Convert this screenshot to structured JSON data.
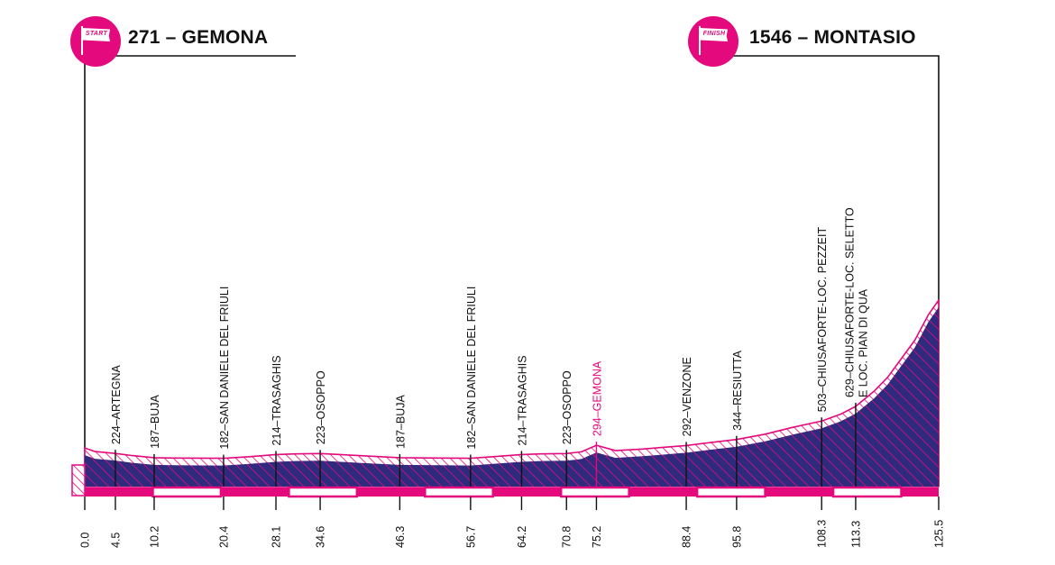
{
  "start": {
    "label": "271 – GEMONA",
    "flag_text": "START"
  },
  "finish": {
    "label": "1546 – MONTASIO",
    "flag_text": "FINISH"
  },
  "colors": {
    "accent": "#e4097c",
    "profile_fill": "#2e2a7e",
    "line": "#111111",
    "white": "#ffffff"
  },
  "chart_data": {
    "type": "area",
    "title": "",
    "xlabel": "",
    "ylabel": "",
    "xlim": [
      0,
      125.5
    ],
    "profile": [
      [
        0,
        271
      ],
      [
        1.5,
        240
      ],
      [
        4.5,
        224
      ],
      [
        7,
        205
      ],
      [
        10.2,
        187
      ],
      [
        13,
        184
      ],
      [
        17,
        183
      ],
      [
        20.4,
        182
      ],
      [
        24,
        195
      ],
      [
        28.1,
        214
      ],
      [
        31,
        220
      ],
      [
        34.6,
        223
      ],
      [
        40,
        206
      ],
      [
        46.3,
        187
      ],
      [
        52,
        184
      ],
      [
        56.7,
        182
      ],
      [
        60,
        196
      ],
      [
        64.2,
        214
      ],
      [
        67,
        220
      ],
      [
        70.8,
        223
      ],
      [
        73,
        238
      ],
      [
        75.2,
        294
      ],
      [
        78,
        248
      ],
      [
        82,
        262
      ],
      [
        85,
        276
      ],
      [
        88.4,
        292
      ],
      [
        92,
        318
      ],
      [
        95.8,
        344
      ],
      [
        100,
        390
      ],
      [
        104,
        448
      ],
      [
        108.3,
        503
      ],
      [
        111,
        560
      ],
      [
        113.3,
        629
      ],
      [
        116,
        760
      ],
      [
        118,
        880
      ],
      [
        120,
        1040
      ],
      [
        122,
        1200
      ],
      [
        124,
        1420
      ],
      [
        125.5,
        1546
      ]
    ],
    "profile_ylim": [
      0,
      1600
    ],
    "places": [
      {
        "km": 4.5,
        "alt": 224,
        "label": "224–ARTEGNA",
        "highlight": false
      },
      {
        "km": 10.2,
        "alt": 187,
        "label": "187–BUJA",
        "highlight": false
      },
      {
        "km": 20.4,
        "alt": 182,
        "label": "182–SAN DANIELE DEL FRIULI",
        "highlight": false
      },
      {
        "km": 28.1,
        "alt": 214,
        "label": "214–TRASAGHIS",
        "highlight": false
      },
      {
        "km": 34.6,
        "alt": 223,
        "label": "223–OSOPPO",
        "highlight": false
      },
      {
        "km": 46.3,
        "alt": 187,
        "label": "187–BUJA",
        "highlight": false
      },
      {
        "km": 56.7,
        "alt": 182,
        "label": "182–SAN DANIELE DEL FRIULI",
        "highlight": false
      },
      {
        "km": 64.2,
        "alt": 214,
        "label": "214–TRASAGHIS",
        "highlight": false
      },
      {
        "km": 70.8,
        "alt": 223,
        "label": "223–OSOPPO",
        "highlight": false
      },
      {
        "km": 75.2,
        "alt": 294,
        "label": "294–GEMONA",
        "highlight": true
      },
      {
        "km": 88.4,
        "alt": 292,
        "label": "292–VENZONE",
        "highlight": false
      },
      {
        "km": 95.8,
        "alt": 344,
        "label": "344–RESIUTTA",
        "highlight": false
      },
      {
        "km": 108.3,
        "alt": 503,
        "label": "503–CHIUSAFORTE-LOC. PEZZEIT",
        "highlight": false
      },
      {
        "km": 113.3,
        "alt": 629,
        "label": "629–CHIUSAFORTE-LOC. SELETTO|E LOC. PIAN DI QUA",
        "highlight": false
      }
    ],
    "km_ticks": [
      "0.0",
      "4.5",
      "10.2",
      "20.4",
      "28.1",
      "34.6",
      "46.3",
      "56.7",
      "64.2",
      "70.8",
      "75.2",
      "88.4",
      "95.8",
      "108.3",
      "113.3",
      "125.5"
    ],
    "distance_bar": [
      {
        "from": 0,
        "to": 10,
        "style": "filled"
      },
      {
        "from": 10,
        "to": 20,
        "style": "outline"
      },
      {
        "from": 20,
        "to": 30,
        "style": "filled"
      },
      {
        "from": 30,
        "to": 40,
        "style": "outline"
      },
      {
        "from": 40,
        "to": 50,
        "style": "filled"
      },
      {
        "from": 50,
        "to": 60,
        "style": "outline"
      },
      {
        "from": 60,
        "to": 70,
        "style": "filled"
      },
      {
        "from": 70,
        "to": 80,
        "style": "outline"
      },
      {
        "from": 80,
        "to": 90,
        "style": "filled"
      },
      {
        "from": 90,
        "to": 100,
        "style": "outline"
      },
      {
        "from": 100,
        "to": 110,
        "style": "filled"
      },
      {
        "from": 110,
        "to": 120,
        "style": "outline"
      },
      {
        "from": 120,
        "to": 125.5,
        "style": "filled"
      }
    ]
  }
}
